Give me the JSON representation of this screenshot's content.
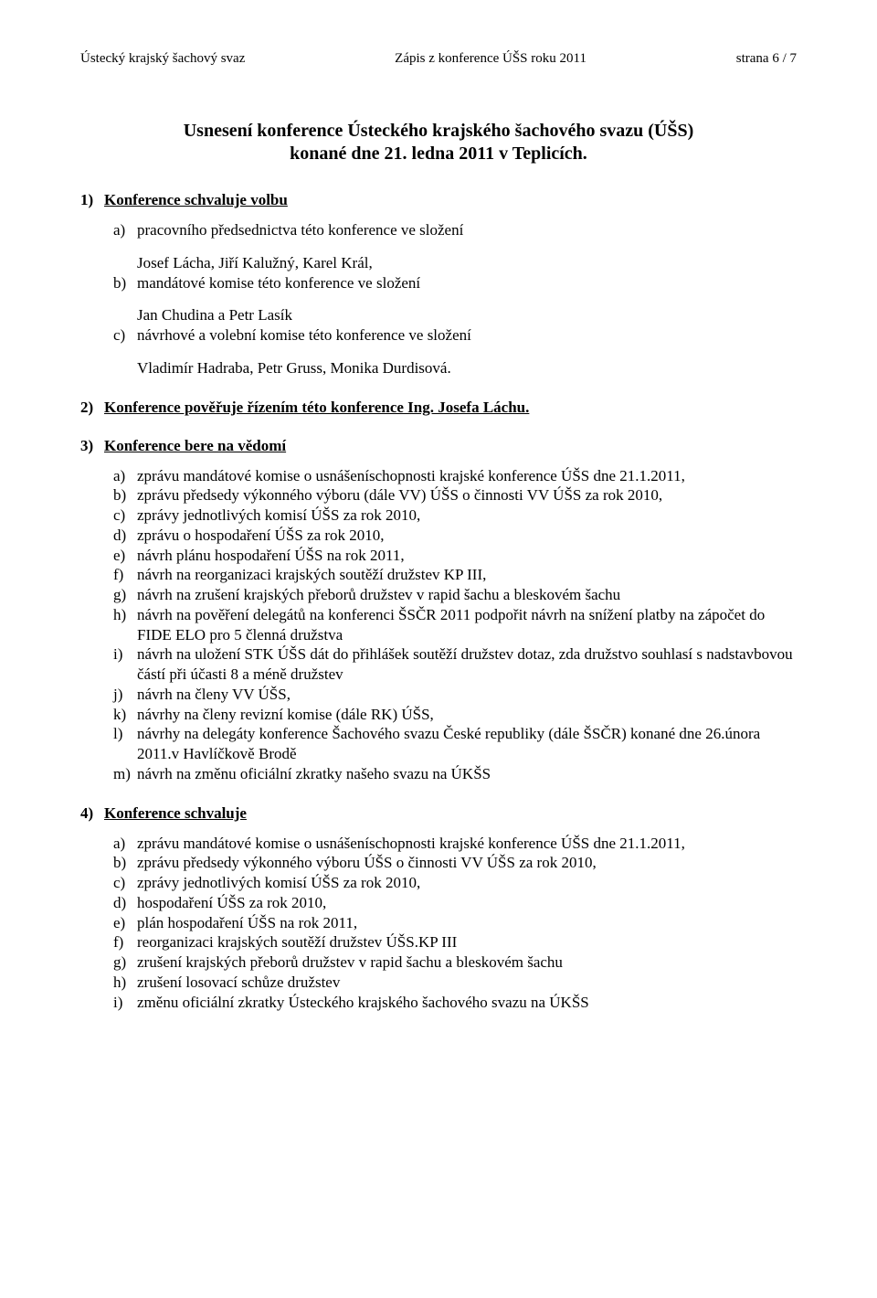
{
  "header": {
    "left": "Ústecký krajský šachový svaz",
    "center": "Zápis z konference ÚŠS roku 2011",
    "right": "strana  6 / 7"
  },
  "title": {
    "line1": "Usnesení konference Ústeckého krajského šachového svazu (ÚŠS)",
    "line2": "konané dne 21. ledna 2011 v Teplicích."
  },
  "s1": {
    "num": "1)",
    "head": "Konference schvaluje volbu",
    "a_marker": "a)",
    "a_text": "pracovního předsednictva této konference ve složení",
    "a_line2": "Josef Lácha, Jiří Kalužný, Karel Král,",
    "b_marker": "b)",
    "b_text": "mandátové komise této konference ve složení",
    "b_line2": "Jan Chudina a Petr Lasík",
    "c_marker": "c)",
    "c_text": "návrhové a volební komise této konference ve složení",
    "c_line2": "Vladimír Hadraba, Petr Gruss, Monika Durdisová."
  },
  "s2": {
    "num": "2)",
    "head": "Konference pověřuje řízením této konference Ing. Josefa Láchu."
  },
  "s3": {
    "num": "3)",
    "head": "Konference bere na vědomí",
    "items": [
      {
        "m": "a)",
        "t": "zprávu mandátové komise o usnášeníschopnosti krajské konference ÚŠS dne 21.1.2011,"
      },
      {
        "m": "b)",
        "t": "zprávu předsedy výkonného výboru (dále VV) ÚŠS o činnosti VV ÚŠS za rok 2010,"
      },
      {
        "m": "c)",
        "t": "zprávy jednotlivých komisí ÚŠS za rok 2010,"
      },
      {
        "m": "d)",
        "t": "zprávu o hospodaření ÚŠS za rok 2010,"
      },
      {
        "m": "e)",
        "t": "návrh plánu hospodaření ÚŠS na rok 2011,"
      },
      {
        "m": "f)",
        "t": "návrh na reorganizaci krajských soutěží družstev KP III,"
      },
      {
        "m": "g)",
        "t": "návrh na zrušení krajských přeborů družstev v rapid šachu a bleskovém šachu"
      },
      {
        "m": "h)",
        "t": "návrh na pověření delegátů na konferenci ŠSČR 2011 podpořit návrh na snížení platby na zápočet do FIDE ELO  pro 5 členná družstva"
      },
      {
        "m": "i)",
        "t": "návrh na uložení STK ÚŠS dát do přihlášek soutěží družstev dotaz, zda družstvo souhlasí s nadstavbovou částí při účasti 8 a méně družstev"
      },
      {
        "m": "j)",
        "t": "návrh na členy VV ÚŠS,"
      },
      {
        "m": "k)",
        "t": "návrhy na členy revizní komise (dále RK) ÚŠS,"
      },
      {
        "m": "l)",
        "t": "návrhy na delegáty konference Šachového svazu České republiky (dále ŠSČR) konané dne 26.února 2011.v Havlíčkově Brodě"
      },
      {
        "m": "m)",
        "t": "návrh na změnu oficiální zkratky našeho svazu na ÚKŠS"
      }
    ]
  },
  "s4": {
    "num": "4)",
    "head": "Konference schvaluje",
    "items": [
      {
        "m": "a)",
        "t": "zprávu mandátové komise o usnášeníschopnosti krajské konference ÚŠS dne 21.1.2011,"
      },
      {
        "m": "b)",
        "t": "zprávu předsedy výkonného výboru  ÚŠS o činnosti VV ÚŠS za rok 2010,"
      },
      {
        "m": "c)",
        "t": "zprávy jednotlivých komisí ÚŠS za rok 2010,"
      },
      {
        "m": "d)",
        "t": "hospodaření ÚŠS za rok 2010,"
      },
      {
        "m": "e)",
        "t": "plán hospodaření ÚŠS na rok 2011,"
      },
      {
        "m": "f)",
        "t": "reorganizaci krajských soutěží družstev ÚŠS.KP III"
      },
      {
        "m": "g)",
        "t": "zrušení krajských přeborů družstev v rapid šachu a bleskovém šachu"
      },
      {
        "m": "h)",
        "t": "zrušení losovací schůze družstev"
      },
      {
        "m": "i)",
        "t": "změnu oficiální zkratky Ústeckého krajského šachového svazu na ÚKŠS"
      }
    ]
  }
}
